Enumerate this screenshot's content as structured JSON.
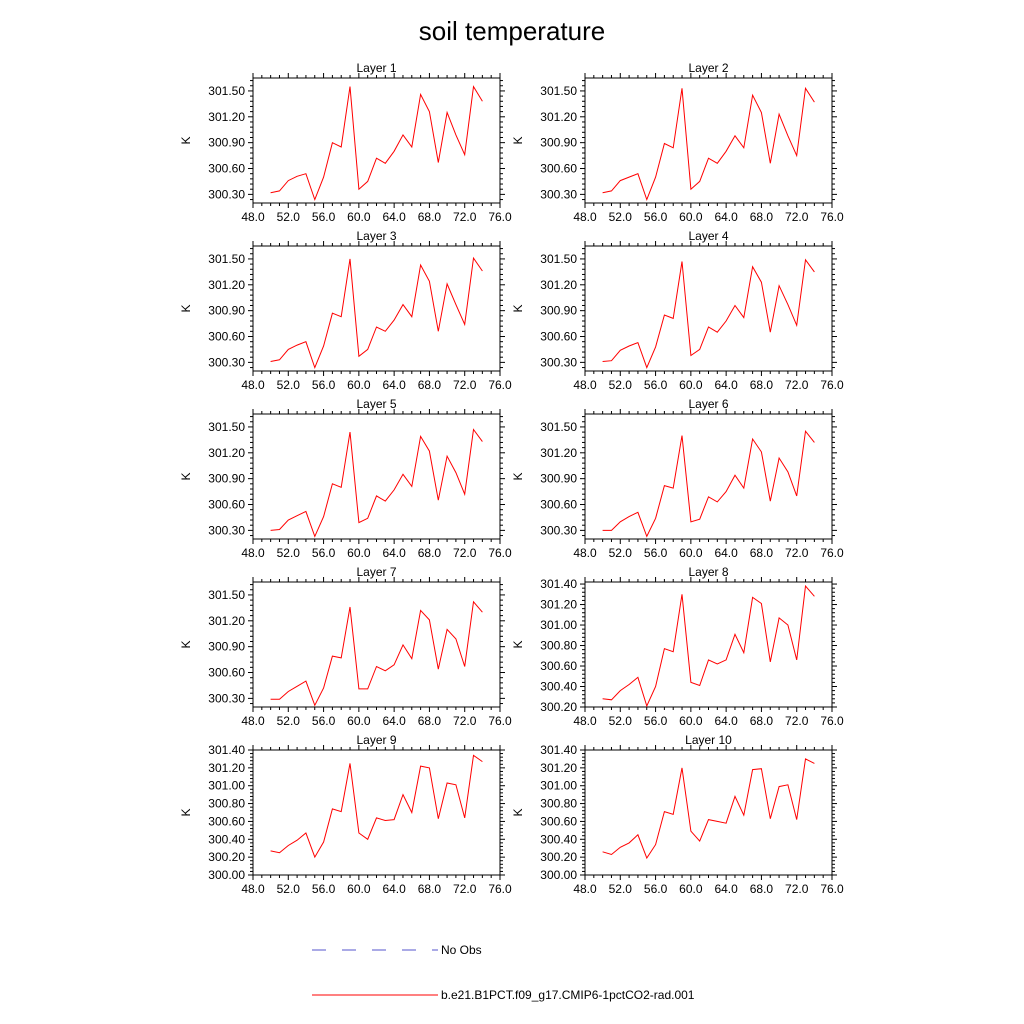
{
  "title": "soil temperature",
  "legend": {
    "items": [
      {
        "label": "No Obs",
        "color": "#5555cc",
        "style": "dashed"
      },
      {
        "label": "b.e21.B1PCT.f09_g17.CMIP6-1pctCO2-rad.001",
        "color": "#ff0000",
        "style": "solid"
      }
    ]
  },
  "chart_data": [
    {
      "type": "line",
      "title": "Layer 1",
      "ylabel": "K",
      "xlim": [
        48,
        76
      ],
      "ylim": [
        300.2,
        301.65
      ],
      "xticks": [
        "48.0",
        "52.0",
        "56.0",
        "60.0",
        "64.0",
        "68.0",
        "72.0",
        "76.0"
      ],
      "yticks": [
        "300.30",
        "300.60",
        "300.90",
        "301.20",
        "301.50"
      ],
      "series": [
        {
          "name": "b.e21.B1PCT.f09_g17.CMIP6-1pctCO2-rad.001",
          "color": "#ff0000",
          "x": [
            50,
            51,
            52,
            53,
            54,
            55,
            56,
            57,
            58,
            59,
            60,
            61,
            62,
            63,
            64,
            65,
            66,
            67,
            68,
            69,
            70,
            71,
            72,
            73,
            74
          ],
          "y": [
            300.32,
            300.34,
            300.46,
            300.51,
            300.54,
            300.24,
            300.5,
            300.9,
            300.85,
            301.55,
            300.36,
            300.45,
            300.72,
            300.66,
            300.8,
            300.99,
            300.85,
            301.46,
            301.26,
            300.67,
            301.25,
            300.99,
            300.76,
            301.55,
            301.38
          ]
        }
      ]
    },
    {
      "type": "line",
      "title": "Layer 2",
      "ylabel": "K",
      "xlim": [
        48,
        76
      ],
      "ylim": [
        300.2,
        301.65
      ],
      "xticks": [
        "48.0",
        "52.0",
        "56.0",
        "60.0",
        "64.0",
        "68.0",
        "72.0",
        "76.0"
      ],
      "yticks": [
        "300.30",
        "300.60",
        "300.90",
        "301.20",
        "301.50"
      ],
      "series": [
        {
          "name": "b.e21.B1PCT.f09_g17.CMIP6-1pctCO2-rad.001",
          "color": "#ff0000",
          "x": [
            50,
            51,
            52,
            53,
            54,
            55,
            56,
            57,
            58,
            59,
            60,
            61,
            62,
            63,
            64,
            65,
            66,
            67,
            68,
            69,
            70,
            71,
            72,
            73,
            74
          ],
          "y": [
            300.32,
            300.34,
            300.46,
            300.5,
            300.54,
            300.24,
            300.5,
            300.89,
            300.84,
            301.53,
            300.36,
            300.45,
            300.72,
            300.66,
            300.8,
            300.98,
            300.84,
            301.45,
            301.25,
            300.66,
            301.23,
            300.98,
            300.75,
            301.53,
            301.37
          ]
        }
      ]
    },
    {
      "type": "line",
      "title": "Layer 3",
      "ylabel": "K",
      "xlim": [
        48,
        76
      ],
      "ylim": [
        300.2,
        301.65
      ],
      "xticks": [
        "48.0",
        "52.0",
        "56.0",
        "60.0",
        "64.0",
        "68.0",
        "72.0",
        "76.0"
      ],
      "yticks": [
        "300.30",
        "300.60",
        "300.90",
        "301.20",
        "301.50"
      ],
      "series": [
        {
          "name": "b.e21.B1PCT.f09_g17.CMIP6-1pctCO2-rad.001",
          "color": "#ff0000",
          "x": [
            50,
            51,
            52,
            53,
            54,
            55,
            56,
            57,
            58,
            59,
            60,
            61,
            62,
            63,
            64,
            65,
            66,
            67,
            68,
            69,
            70,
            71,
            72,
            73,
            74
          ],
          "y": [
            300.31,
            300.33,
            300.45,
            300.5,
            300.54,
            300.24,
            300.49,
            300.87,
            300.83,
            301.5,
            300.37,
            300.45,
            300.71,
            300.66,
            300.79,
            300.97,
            300.83,
            301.43,
            301.24,
            300.66,
            301.21,
            300.97,
            300.74,
            301.51,
            301.36
          ]
        }
      ]
    },
    {
      "type": "line",
      "title": "Layer 4",
      "ylabel": "K",
      "xlim": [
        48,
        76
      ],
      "ylim": [
        300.2,
        301.65
      ],
      "xticks": [
        "48.0",
        "52.0",
        "56.0",
        "60.0",
        "64.0",
        "68.0",
        "72.0",
        "76.0"
      ],
      "yticks": [
        "300.30",
        "300.60",
        "300.90",
        "301.20",
        "301.50"
      ],
      "series": [
        {
          "name": "b.e21.B1PCT.f09_g17.CMIP6-1pctCO2-rad.001",
          "color": "#ff0000",
          "x": [
            50,
            51,
            52,
            53,
            54,
            55,
            56,
            57,
            58,
            59,
            60,
            61,
            62,
            63,
            64,
            65,
            66,
            67,
            68,
            69,
            70,
            71,
            72,
            73,
            74
          ],
          "y": [
            300.31,
            300.32,
            300.44,
            300.49,
            300.53,
            300.24,
            300.48,
            300.85,
            300.81,
            301.47,
            300.38,
            300.45,
            300.71,
            300.65,
            300.78,
            300.96,
            300.82,
            301.41,
            301.23,
            300.65,
            301.19,
            300.97,
            300.73,
            301.49,
            301.35
          ]
        }
      ]
    },
    {
      "type": "line",
      "title": "Layer 5",
      "ylabel": "K",
      "xlim": [
        48,
        76
      ],
      "ylim": [
        300.2,
        301.65
      ],
      "xticks": [
        "48.0",
        "52.0",
        "56.0",
        "60.0",
        "64.0",
        "68.0",
        "72.0",
        "76.0"
      ],
      "yticks": [
        "300.30",
        "300.60",
        "300.90",
        "301.20",
        "301.50"
      ],
      "series": [
        {
          "name": "b.e21.B1PCT.f09_g17.CMIP6-1pctCO2-rad.001",
          "color": "#ff0000",
          "x": [
            50,
            51,
            52,
            53,
            54,
            55,
            56,
            57,
            58,
            59,
            60,
            61,
            62,
            63,
            64,
            65,
            66,
            67,
            68,
            69,
            70,
            71,
            72,
            73,
            74
          ],
          "y": [
            300.3,
            300.31,
            300.42,
            300.47,
            300.52,
            300.23,
            300.46,
            300.84,
            300.8,
            301.44,
            300.39,
            300.44,
            300.7,
            300.64,
            300.77,
            300.95,
            300.81,
            301.39,
            301.22,
            300.65,
            301.16,
            300.97,
            300.72,
            301.47,
            301.33
          ]
        }
      ]
    },
    {
      "type": "line",
      "title": "Layer 6",
      "ylabel": "K",
      "xlim": [
        48,
        76
      ],
      "ylim": [
        300.2,
        301.65
      ],
      "xticks": [
        "48.0",
        "52.0",
        "56.0",
        "60.0",
        "64.0",
        "68.0",
        "72.0",
        "76.0"
      ],
      "yticks": [
        "300.30",
        "300.60",
        "300.90",
        "301.20",
        "301.50"
      ],
      "series": [
        {
          "name": "b.e21.B1PCT.f09_g17.CMIP6-1pctCO2-rad.001",
          "color": "#ff0000",
          "x": [
            50,
            51,
            52,
            53,
            54,
            55,
            56,
            57,
            58,
            59,
            60,
            61,
            62,
            63,
            64,
            65,
            66,
            67,
            68,
            69,
            70,
            71,
            72,
            73,
            74
          ],
          "y": [
            300.3,
            300.3,
            300.4,
            300.46,
            300.51,
            300.23,
            300.44,
            300.82,
            300.79,
            301.4,
            300.4,
            300.43,
            300.69,
            300.63,
            300.75,
            300.94,
            300.79,
            301.36,
            301.21,
            300.64,
            301.14,
            300.98,
            300.7,
            301.45,
            301.32
          ]
        }
      ]
    },
    {
      "type": "line",
      "title": "Layer 7",
      "ylabel": "K",
      "xlim": [
        48,
        76
      ],
      "ylim": [
        300.2,
        301.65
      ],
      "xticks": [
        "48.0",
        "52.0",
        "56.0",
        "60.0",
        "64.0",
        "68.0",
        "72.0",
        "76.0"
      ],
      "yticks": [
        "300.30",
        "300.60",
        "300.90",
        "301.20",
        "301.50"
      ],
      "series": [
        {
          "name": "b.e21.B1PCT.f09_g17.CMIP6-1pctCO2-rad.001",
          "color": "#ff0000",
          "x": [
            50,
            51,
            52,
            53,
            54,
            55,
            56,
            57,
            58,
            59,
            60,
            61,
            62,
            63,
            64,
            65,
            66,
            67,
            68,
            69,
            70,
            71,
            72,
            73,
            74
          ],
          "y": [
            300.29,
            300.29,
            300.38,
            300.44,
            300.5,
            300.22,
            300.42,
            300.79,
            300.77,
            301.36,
            300.41,
            300.41,
            300.67,
            300.62,
            300.69,
            300.92,
            300.76,
            301.32,
            301.21,
            300.64,
            301.1,
            300.99,
            300.67,
            301.42,
            301.3
          ]
        }
      ]
    },
    {
      "type": "line",
      "title": "Layer 8",
      "ylabel": "K",
      "xlim": [
        48,
        76
      ],
      "ylim": [
        300.2,
        301.42
      ],
      "xticks": [
        "48.0",
        "52.0",
        "56.0",
        "60.0",
        "64.0",
        "68.0",
        "72.0",
        "76.0"
      ],
      "yticks": [
        "300.20",
        "300.40",
        "300.60",
        "300.80",
        "301.00",
        "301.20",
        "301.40"
      ],
      "series": [
        {
          "name": "b.e21.B1PCT.f09_g17.CMIP6-1pctCO2-rad.001",
          "color": "#ff0000",
          "x": [
            50,
            51,
            52,
            53,
            54,
            55,
            56,
            57,
            58,
            59,
            60,
            61,
            62,
            63,
            64,
            65,
            66,
            67,
            68,
            69,
            70,
            71,
            72,
            73,
            74
          ],
          "y": [
            300.28,
            300.27,
            300.36,
            300.42,
            300.49,
            300.21,
            300.4,
            300.77,
            300.74,
            301.3,
            300.44,
            300.41,
            300.66,
            300.62,
            300.66,
            300.91,
            300.73,
            301.27,
            301.21,
            300.64,
            301.07,
            301.0,
            300.66,
            301.38,
            301.28
          ]
        }
      ]
    },
    {
      "type": "line",
      "title": "Layer 9",
      "ylabel": "K",
      "xlim": [
        48,
        76
      ],
      "ylim": [
        300.0,
        301.4
      ],
      "xticks": [
        "48.0",
        "52.0",
        "56.0",
        "60.0",
        "64.0",
        "68.0",
        "72.0",
        "76.0"
      ],
      "yticks": [
        "300.00",
        "300.20",
        "300.40",
        "300.60",
        "300.80",
        "301.00",
        "301.20",
        "301.40"
      ],
      "series": [
        {
          "name": "b.e21.B1PCT.f09_g17.CMIP6-1pctCO2-rad.001",
          "color": "#ff0000",
          "x": [
            50,
            51,
            52,
            53,
            54,
            55,
            56,
            57,
            58,
            59,
            60,
            61,
            62,
            63,
            64,
            65,
            66,
            67,
            68,
            69,
            70,
            71,
            72,
            73,
            74
          ],
          "y": [
            300.27,
            300.25,
            300.33,
            300.39,
            300.47,
            300.2,
            300.37,
            300.74,
            300.71,
            301.25,
            300.47,
            300.4,
            300.64,
            300.61,
            300.62,
            300.9,
            300.7,
            301.22,
            301.2,
            300.63,
            301.03,
            301.01,
            300.64,
            301.34,
            301.27
          ]
        }
      ]
    },
    {
      "type": "line",
      "title": "Layer 10",
      "ylabel": "K",
      "xlim": [
        48,
        76
      ],
      "ylim": [
        300.0,
        301.4
      ],
      "xticks": [
        "48.0",
        "52.0",
        "56.0",
        "60.0",
        "64.0",
        "68.0",
        "72.0",
        "76.0"
      ],
      "yticks": [
        "300.00",
        "300.20",
        "300.40",
        "300.60",
        "300.80",
        "301.00",
        "301.20",
        "301.40"
      ],
      "series": [
        {
          "name": "b.e21.B1PCT.f09_g17.CMIP6-1pctCO2-rad.001",
          "color": "#ff0000",
          "x": [
            50,
            51,
            52,
            53,
            54,
            55,
            56,
            57,
            58,
            59,
            60,
            61,
            62,
            63,
            64,
            65,
            66,
            67,
            68,
            69,
            70,
            71,
            72,
            73,
            74
          ],
          "y": [
            300.26,
            300.23,
            300.31,
            300.36,
            300.45,
            300.19,
            300.34,
            300.71,
            300.68,
            301.2,
            300.49,
            300.38,
            300.62,
            300.6,
            300.58,
            300.88,
            300.67,
            301.18,
            301.19,
            300.63,
            300.99,
            301.01,
            300.62,
            301.3,
            301.25
          ]
        }
      ]
    }
  ]
}
